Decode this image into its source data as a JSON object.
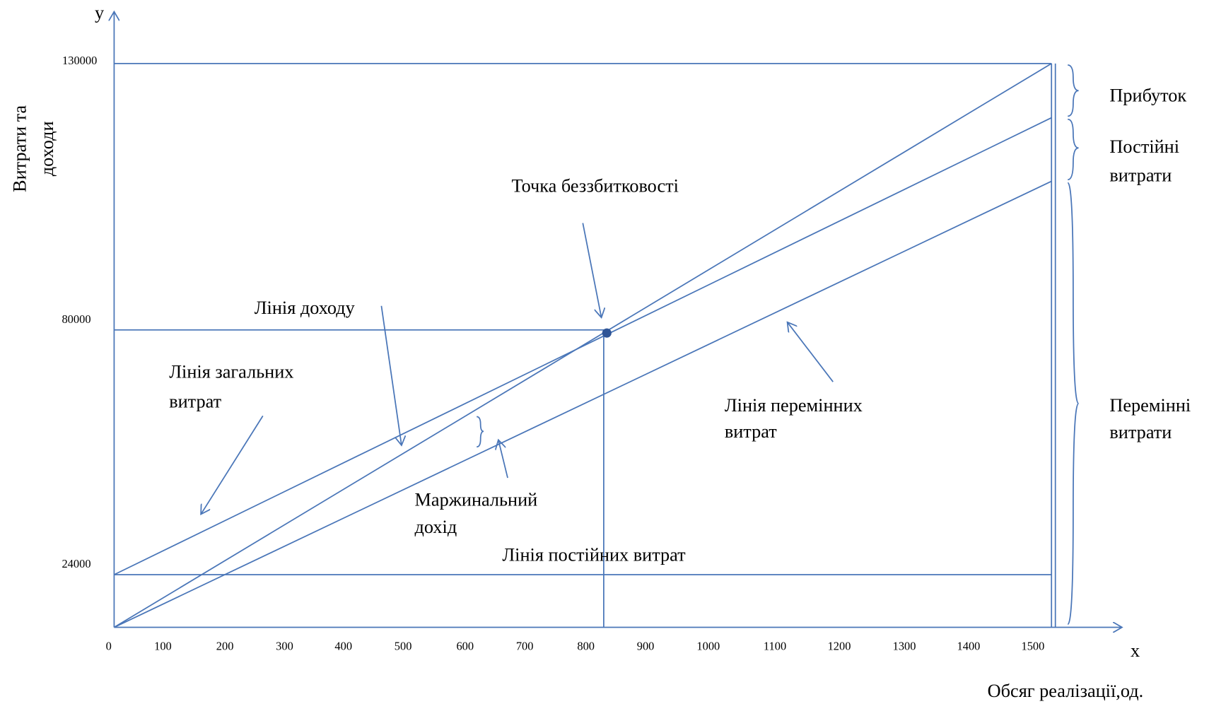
{
  "axes": {
    "y_letter": "y",
    "x_letter": "x",
    "y_title": [
      "Витрати та",
      "доходи"
    ],
    "x_title": "Обсяг реалізації,од.",
    "y_ticks": [
      "130000",
      "80000",
      "24000"
    ],
    "x_ticks": [
      "0",
      "100",
      "200",
      "300",
      "400",
      "500",
      "600",
      "700",
      "800",
      "900",
      "1000",
      "1100",
      "1200",
      "1300",
      "1400",
      "1500"
    ]
  },
  "labels": {
    "break_even": "Точка беззбитковості",
    "revenue_line": "Лінія доходу",
    "total_costs_line": [
      "Лінія загальних",
      "витрат"
    ],
    "variable_costs_line": [
      "Лінія перемінних",
      "витрат"
    ],
    "marginal_income": [
      "Маржинальний",
      "дохід"
    ],
    "fixed_costs_line": "Лінія постійних витрат"
  },
  "braces": {
    "profit": "Прибуток",
    "fixed_costs": [
      "Постійні",
      "витрати"
    ],
    "variable_costs": [
      "Перемінні",
      "витрати"
    ]
  }
}
